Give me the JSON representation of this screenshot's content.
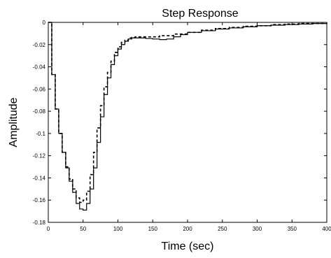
{
  "chart_data": {
    "type": "line",
    "title": "Step Response",
    "xlabel": "Time (sec)",
    "ylabel": "Amplitude",
    "xlim": [
      0,
      400
    ],
    "ylim": [
      -0.18,
      0
    ],
    "grid": false,
    "legend": "none",
    "x_ticks": [
      "0",
      "50",
      "100",
      "150",
      "200",
      "250",
      "300",
      "350",
      "400"
    ],
    "y_ticks": [
      "0",
      "-0.02",
      "-0.04",
      "-0.06",
      "-0.08",
      "-0.1",
      "-0.12",
      "-0.14",
      "-0.16",
      "-0.18"
    ],
    "series": [
      {
        "style": "solid",
        "step": true,
        "x": [
          0,
          5,
          10,
          15,
          20,
          25,
          30,
          35,
          40,
          45,
          50,
          55,
          60,
          65,
          70,
          75,
          80,
          85,
          90,
          95,
          100,
          105,
          110,
          115,
          120,
          125,
          130,
          135,
          140,
          150,
          160,
          170,
          180,
          190,
          200,
          220,
          240,
          260,
          280,
          300,
          320,
          340,
          360,
          380,
          400
        ],
        "y": [
          0,
          -0.047,
          -0.078,
          -0.1,
          -0.117,
          -0.131,
          -0.143,
          -0.153,
          -0.163,
          -0.168,
          -0.169,
          -0.163,
          -0.15,
          -0.131,
          -0.108,
          -0.085,
          -0.065,
          -0.05,
          -0.038,
          -0.03,
          -0.024,
          -0.02,
          -0.017,
          -0.015,
          -0.014,
          -0.014,
          -0.014,
          -0.014,
          -0.0145,
          -0.015,
          -0.0155,
          -0.015,
          -0.013,
          -0.011,
          -0.009,
          -0.0075,
          -0.006,
          -0.005,
          -0.004,
          -0.003,
          -0.0025,
          -0.002,
          -0.0015,
          -0.001,
          -0.001
        ]
      },
      {
        "style": "dashed",
        "step": true,
        "x": [
          0,
          5,
          10,
          15,
          20,
          25,
          30,
          35,
          40,
          45,
          50,
          55,
          60,
          65,
          70,
          75,
          80,
          85,
          90,
          95,
          100,
          105,
          110,
          115,
          120,
          125,
          130,
          135,
          140,
          150,
          160,
          180,
          200,
          220,
          240,
          260,
          280,
          300,
          320,
          340,
          360,
          380,
          400
        ],
        "y": [
          0,
          -0.047,
          -0.078,
          -0.1,
          -0.117,
          -0.13,
          -0.141,
          -0.15,
          -0.158,
          -0.162,
          -0.16,
          -0.152,
          -0.137,
          -0.117,
          -0.095,
          -0.075,
          -0.058,
          -0.045,
          -0.035,
          -0.027,
          -0.022,
          -0.018,
          -0.016,
          -0.014,
          -0.0135,
          -0.013,
          -0.013,
          -0.013,
          -0.013,
          -0.013,
          -0.012,
          -0.0105,
          -0.009,
          -0.007,
          -0.0055,
          -0.0045,
          -0.0035,
          -0.003,
          -0.002,
          -0.0015,
          -0.001,
          -0.001,
          -0.0005
        ]
      }
    ]
  }
}
